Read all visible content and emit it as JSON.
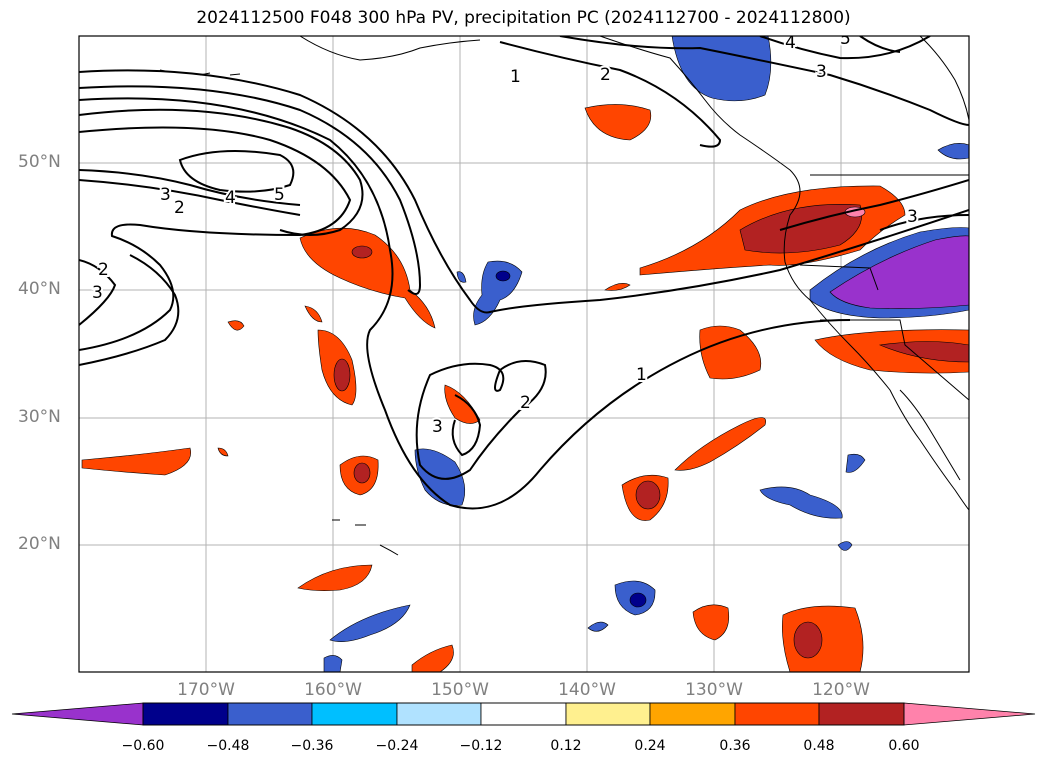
{
  "figure": {
    "title": "2024112500 F048 300 hPa PV, precipitation PC (2024112700 - 2024112800)"
  },
  "axes": {
    "lat_labels": [
      "50°N",
      "40°N",
      "30°N",
      "20°N"
    ],
    "lon_labels": [
      "170°W",
      "160°W",
      "150°W",
      "140°W",
      "130°W",
      "120°W"
    ],
    "lon_range_deg": [
      -180,
      -110
    ],
    "lat_range_deg": [
      10,
      60
    ],
    "gridlines": true
  },
  "pv_contour_labels": [
    "1",
    "2",
    "3",
    "4",
    "5"
  ],
  "colorbar": {
    "tick_labels": [
      "−0.60",
      "−0.48",
      "−0.36",
      "−0.24",
      "−0.12",
      "0.12",
      "0.24",
      "0.36",
      "0.48",
      "0.60"
    ],
    "colors": [
      "#9932cc",
      "#00008b",
      "#3a5fcd",
      "#00bfff",
      "#b0e2ff",
      "#ffffff",
      "#fff08f",
      "#ffa500",
      "#ff4500",
      "#b22222",
      "#ff82ab"
    ],
    "extend": "both"
  },
  "legend_colors": {
    "strong_negative": "#9932cc",
    "negative": "#3a5fcd",
    "positive": "#ff4500",
    "strong_positive": "#b22222"
  }
}
